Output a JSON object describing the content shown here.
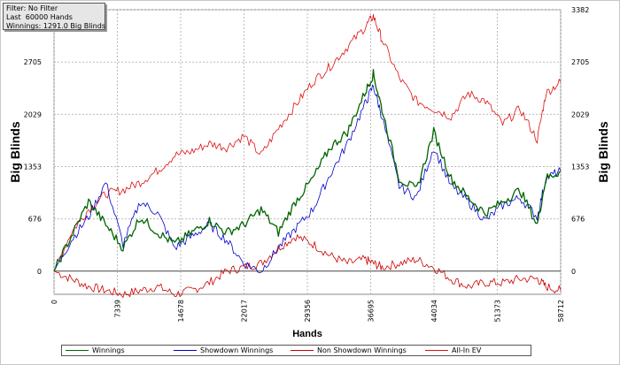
{
  "info": {
    "filter": "Filter: No Filter",
    "last": "Last  60000 Hands",
    "winnings": "Winnings: 1291.0 Big Blinds"
  },
  "chart_data": {
    "type": "line",
    "title": "",
    "xlabel": "Hands",
    "ylabel": "Big Blinds",
    "ylabel_right": "Big Blinds",
    "xlim": [
      0,
      58712
    ],
    "ylim": [
      -300,
      3382
    ],
    "x_ticks": [
      0,
      7339,
      14678,
      22017,
      29356,
      36695,
      44034,
      51373,
      58712
    ],
    "y_ticks": [
      0,
      676,
      1353,
      2029,
      2705,
      3382
    ],
    "grid": true,
    "legend_position": "bottom",
    "x": [
      0,
      2000,
      4000,
      6000,
      8000,
      10000,
      12000,
      14000,
      16000,
      18000,
      20000,
      22000,
      24000,
      26000,
      28000,
      30000,
      32000,
      34000,
      36000,
      37000,
      38000,
      40000,
      42000,
      44000,
      46000,
      48000,
      50000,
      52000,
      54000,
      56000,
      57000,
      58712
    ],
    "series": [
      {
        "name": "Winnings",
        "color": "#006400",
        "values": [
          0,
          450,
          900,
          600,
          300,
          700,
          500,
          350,
          500,
          650,
          500,
          600,
          800,
          500,
          900,
          1200,
          1600,
          1800,
          2300,
          2550,
          2100,
          1200,
          1050,
          1800,
          1200,
          950,
          750,
          900,
          1050,
          600,
          1200,
          1291
        ]
      },
      {
        "name": "Showdown Winnings",
        "color": "#0000cc",
        "values": [
          0,
          400,
          700,
          1150,
          350,
          900,
          750,
          300,
          450,
          600,
          400,
          100,
          0,
          300,
          550,
          800,
          1250,
          1650,
          2150,
          2400,
          2000,
          1100,
          950,
          1600,
          1100,
          900,
          650,
          850,
          950,
          700,
          1200,
          1300
        ]
      },
      {
        "name": "Non Showdown Winnings",
        "color": "#cc0000",
        "values": [
          0,
          -100,
          -200,
          -250,
          -300,
          -250,
          -200,
          -300,
          -250,
          -150,
          0,
          50,
          100,
          300,
          450,
          350,
          200,
          100,
          150,
          100,
          50,
          100,
          150,
          50,
          -100,
          -200,
          -150,
          -150,
          -100,
          -100,
          -200,
          -250
        ]
      },
      {
        "name": "All-In EV",
        "color": "#dd1010",
        "values": [
          0,
          500,
          800,
          1000,
          1050,
          1150,
          1300,
          1500,
          1550,
          1650,
          1600,
          1750,
          1500,
          1850,
          2150,
          2450,
          2650,
          2900,
          3150,
          3300,
          3000,
          2500,
          2200,
          2100,
          2000,
          2300,
          2200,
          1900,
          2100,
          1700,
          2300,
          2450
        ]
      }
    ]
  }
}
